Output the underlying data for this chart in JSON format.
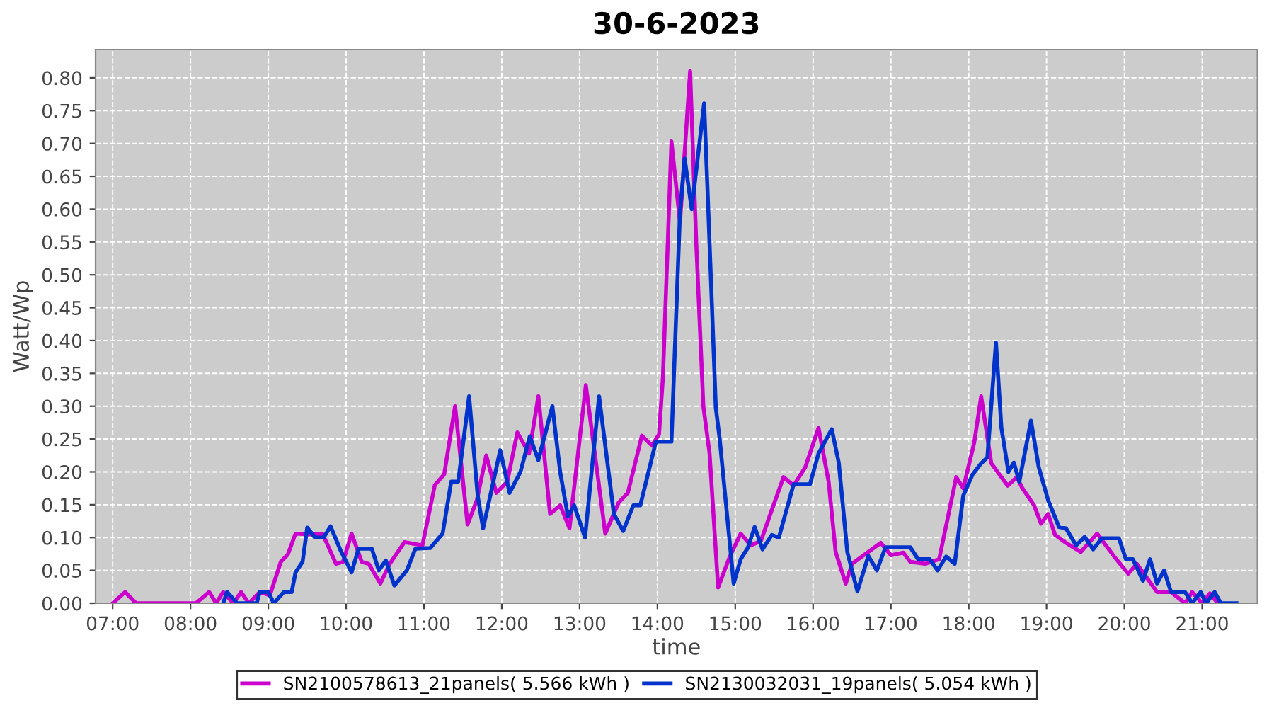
{
  "chart_data": {
    "type": "line",
    "title": "30-6-2023",
    "xlabel": "time",
    "ylabel": "Watt/Wp",
    "xlim": [
      6.78,
      21.71
    ],
    "ylim": [
      0,
      0.843
    ],
    "xticks": [
      {
        "value": 7,
        "label": "07:00"
      },
      {
        "value": 8,
        "label": "08:00"
      },
      {
        "value": 9,
        "label": "09:00"
      },
      {
        "value": 10,
        "label": "10:00"
      },
      {
        "value": 11,
        "label": "11:00"
      },
      {
        "value": 12,
        "label": "12:00"
      },
      {
        "value": 13,
        "label": "13:00"
      },
      {
        "value": 14,
        "label": "14:00"
      },
      {
        "value": 15,
        "label": "15:00"
      },
      {
        "value": 16,
        "label": "16:00"
      },
      {
        "value": 17,
        "label": "17:00"
      },
      {
        "value": 18,
        "label": "18:00"
      },
      {
        "value": 19,
        "label": "19:00"
      },
      {
        "value": 20,
        "label": "20:00"
      },
      {
        "value": 21,
        "label": "21:00"
      }
    ],
    "yticks": [
      {
        "value": 0,
        "label": "0.00"
      },
      {
        "value": 0.05,
        "label": "0.05"
      },
      {
        "value": 0.1,
        "label": "0.10"
      },
      {
        "value": 0.15,
        "label": "0.15"
      },
      {
        "value": 0.2,
        "label": "0.20"
      },
      {
        "value": 0.25,
        "label": "0.25"
      },
      {
        "value": 0.3,
        "label": "0.30"
      },
      {
        "value": 0.35,
        "label": "0.35"
      },
      {
        "value": 0.4,
        "label": "0.40"
      },
      {
        "value": 0.45,
        "label": "0.45"
      },
      {
        "value": 0.5,
        "label": "0.50"
      },
      {
        "value": 0.55,
        "label": "0.55"
      },
      {
        "value": 0.6,
        "label": "0.60"
      },
      {
        "value": 0.65,
        "label": "0.65"
      },
      {
        "value": 0.7,
        "label": "0.70"
      },
      {
        "value": 0.75,
        "label": "0.75"
      },
      {
        "value": 0.8,
        "label": "0.80"
      }
    ],
    "grid": true,
    "legend": "bottom",
    "marker": "none",
    "line_style": "solid",
    "series": [
      {
        "name": "SN2100578613_21panels( 5.566 kWh )",
        "color": "#cc00cc",
        "x": [
          7.0,
          7.16,
          7.3,
          8.07,
          8.24,
          8.33,
          8.42,
          8.55,
          8.65,
          8.75,
          8.89,
          9.02,
          9.16,
          9.25,
          9.35,
          9.5,
          9.7,
          9.87,
          9.96,
          10.07,
          10.2,
          10.29,
          10.44,
          10.56,
          10.75,
          10.98,
          11.14,
          11.26,
          11.4,
          11.56,
          11.68,
          11.8,
          11.93,
          12.07,
          12.2,
          12.35,
          12.47,
          12.62,
          12.75,
          12.87,
          13.08,
          13.33,
          13.5,
          13.62,
          13.8,
          13.93,
          14.02,
          14.07,
          14.18,
          14.29,
          14.42,
          14.5,
          14.59,
          14.67,
          14.78,
          14.93,
          15.07,
          15.2,
          15.33,
          15.47,
          15.62,
          15.75,
          15.9,
          16.07,
          16.2,
          16.29,
          16.42,
          16.5,
          16.65,
          16.87,
          17.0,
          17.16,
          17.25,
          17.44,
          17.62,
          17.84,
          17.93,
          18.07,
          18.16,
          18.29,
          18.5,
          18.62,
          18.69,
          18.84,
          18.93,
          19.02,
          19.11,
          19.25,
          19.44,
          19.65,
          19.87,
          20.05,
          20.16,
          20.42,
          20.6,
          20.78,
          20.87,
          21.0,
          21.1,
          21.2
        ],
        "values": [
          0,
          0.017,
          0,
          0,
          0.017,
          0,
          0.017,
          0,
          0.017,
          0,
          0.017,
          0.012,
          0.063,
          0.074,
          0.106,
          0.105,
          0.105,
          0.06,
          0.063,
          0.106,
          0.063,
          0.06,
          0.03,
          0.06,
          0.093,
          0.088,
          0.18,
          0.196,
          0.3,
          0.12,
          0.157,
          0.225,
          0.168,
          0.185,
          0.26,
          0.228,
          0.315,
          0.136,
          0.149,
          0.114,
          0.332,
          0.106,
          0.153,
          0.168,
          0.255,
          0.24,
          0.257,
          0.343,
          0.703,
          0.58,
          0.81,
          0.545,
          0.3,
          0.228,
          0.024,
          0.071,
          0.106,
          0.088,
          0.095,
          0.142,
          0.192,
          0.179,
          0.207,
          0.267,
          0.185,
          0.078,
          0.03,
          0.06,
          0.073,
          0.092,
          0.073,
          0.077,
          0.063,
          0.06,
          0.067,
          0.192,
          0.175,
          0.244,
          0.315,
          0.213,
          0.179,
          0.192,
          0.175,
          0.149,
          0.121,
          0.136,
          0.104,
          0.092,
          0.078,
          0.106,
          0.071,
          0.045,
          0.06,
          0.017,
          0.017,
          0,
          0.017,
          0,
          0.015,
          0
        ]
      },
      {
        "name": "SN2130032031_19panels( 5.054 kWh )",
        "color": "#0033cc",
        "x": [
          8.42,
          8.47,
          8.6,
          8.85,
          8.89,
          9.0,
          9.07,
          9.2,
          9.3,
          9.35,
          9.44,
          9.5,
          9.6,
          9.71,
          9.8,
          9.93,
          10.07,
          10.16,
          10.33,
          10.42,
          10.51,
          10.62,
          10.78,
          10.89,
          11.08,
          11.24,
          11.35,
          11.44,
          11.58,
          11.69,
          11.76,
          11.98,
          12.1,
          12.24,
          12.36,
          12.47,
          12.65,
          12.75,
          12.85,
          12.93,
          13.07,
          13.25,
          13.44,
          13.56,
          13.69,
          13.78,
          13.98,
          14.18,
          14.29,
          14.35,
          14.44,
          14.6,
          14.65,
          14.75,
          14.8,
          14.98,
          15.07,
          15.16,
          15.25,
          15.35,
          15.47,
          15.56,
          15.75,
          15.96,
          16.07,
          16.24,
          16.33,
          16.44,
          16.57,
          16.71,
          16.82,
          16.93,
          17.25,
          17.35,
          17.5,
          17.6,
          17.71,
          17.82,
          17.93,
          18.05,
          18.16,
          18.24,
          18.35,
          18.42,
          18.51,
          18.58,
          18.65,
          18.8,
          18.9,
          19.02,
          19.16,
          19.25,
          19.38,
          19.49,
          19.6,
          19.71,
          19.93,
          20.02,
          20.11,
          20.24,
          20.33,
          20.42,
          20.51,
          20.6,
          20.78,
          20.87,
          20.98,
          21.05,
          21.16,
          21.24,
          21.44
        ],
        "values": [
          0,
          0.017,
          0,
          0,
          0.017,
          0.017,
          0,
          0.017,
          0.017,
          0.047,
          0.063,
          0.115,
          0.1,
          0.1,
          0.117,
          0.08,
          0.047,
          0.083,
          0.083,
          0.05,
          0.065,
          0.027,
          0.05,
          0.083,
          0.084,
          0.106,
          0.185,
          0.185,
          0.315,
          0.164,
          0.114,
          0.233,
          0.168,
          0.2,
          0.254,
          0.218,
          0.3,
          0.2,
          0.132,
          0.149,
          0.1,
          0.315,
          0.136,
          0.11,
          0.149,
          0.149,
          0.246,
          0.246,
          0.595,
          0.677,
          0.6,
          0.761,
          0.61,
          0.298,
          0.25,
          0.03,
          0.067,
          0.084,
          0.116,
          0.082,
          0.104,
          0.1,
          0.181,
          0.181,
          0.228,
          0.265,
          0.214,
          0.078,
          0.018,
          0.072,
          0.05,
          0.085,
          0.085,
          0.067,
          0.067,
          0.05,
          0.071,
          0.06,
          0.164,
          0.196,
          0.213,
          0.222,
          0.397,
          0.267,
          0.2,
          0.214,
          0.185,
          0.278,
          0.207,
          0.157,
          0.116,
          0.114,
          0.088,
          0.101,
          0.082,
          0.099,
          0.099,
          0.067,
          0.067,
          0.034,
          0.067,
          0.03,
          0.05,
          0.017,
          0.017,
          0,
          0.017,
          0,
          0.017,
          0,
          0
        ]
      }
    ]
  }
}
